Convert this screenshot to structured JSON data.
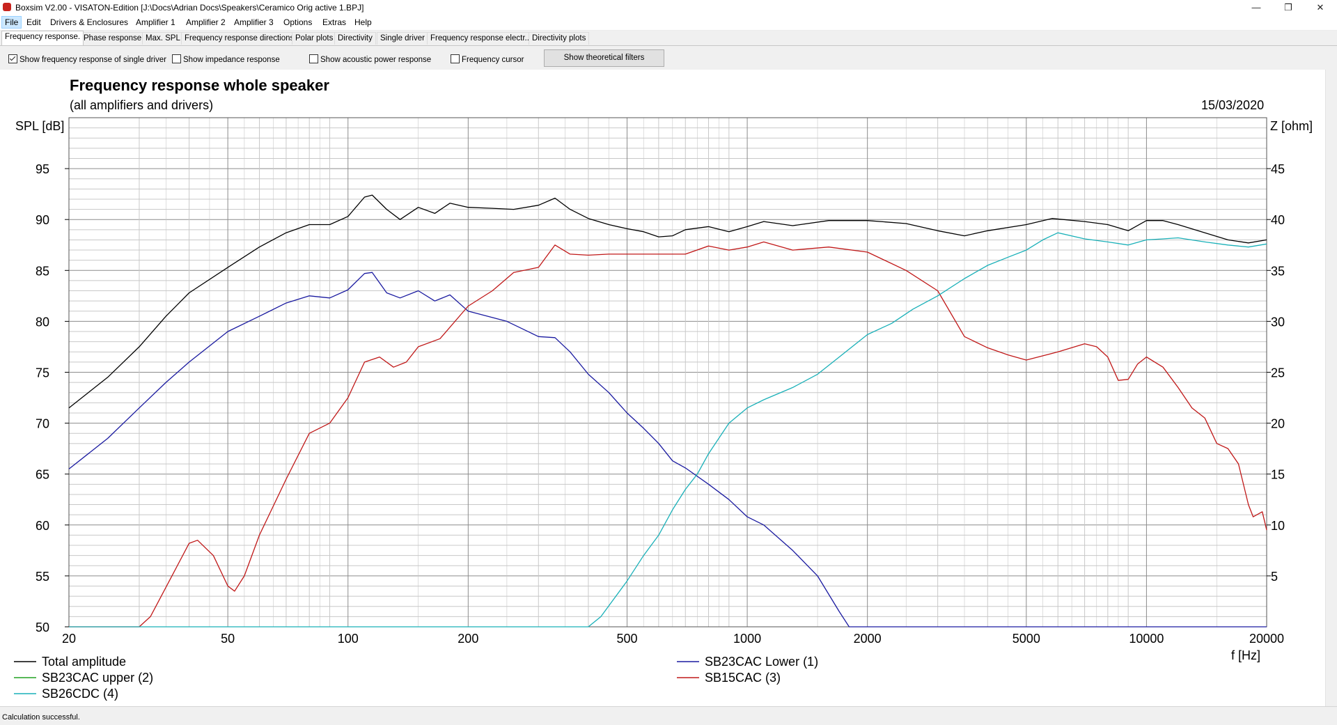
{
  "window": {
    "title": "Boxsim V2.00 - VISATON-Edition [J:\\Docs\\Adrian Docs\\Speakers\\Ceramico Orig active 1.BPJ]",
    "minimize_glyph": "—",
    "restore_glyph": "❐",
    "close_glyph": "✕"
  },
  "menu": [
    "File",
    "Edit",
    "Drivers & Enclosures",
    "Amplifier 1",
    "Amplifier 2",
    "Amplifier 3",
    "Options",
    "Extras",
    "Help"
  ],
  "tabs": [
    "Frequency response.",
    "Phase response",
    "Max. SPL",
    "Frequency response directions",
    "Polar plots",
    "Directivity",
    "Single driver",
    "Frequency response electr..",
    "Directivity plots"
  ],
  "active_tab": 0,
  "toolbar": {
    "checkboxes": [
      {
        "label": "Show frequency response of single driver",
        "checked": true
      },
      {
        "label": "Show impedance response",
        "checked": false
      },
      {
        "label": "Show acoustic power response",
        "checked": false
      },
      {
        "label": "Frequency cursor",
        "checked": false
      }
    ],
    "filter_button": "Show theoretical filters"
  },
  "status": "Calculation successful.",
  "colors": {
    "total": "#000000",
    "lower": "#1a1aa0",
    "upper": "#20a020",
    "sb15": "#c01818",
    "sb26": "#19b0b8",
    "grid_major": "#8c8c8c",
    "grid_minor": "#c8c8c8"
  },
  "chart_data": {
    "type": "line",
    "title": "Frequency response whole speaker",
    "subtitle": "(all amplifiers and drivers)",
    "date": "15/03/2020",
    "ylabel": "SPL [dB]",
    "y2label": "Z [ohm]",
    "xlabel": "f [Hz]",
    "x_scale": "log",
    "xlim": [
      20,
      20000
    ],
    "ylim": [
      50,
      100
    ],
    "y2lim": [
      0,
      50
    ],
    "x_ticks": [
      20,
      50,
      100,
      200,
      500,
      1000,
      2000,
      5000,
      10000,
      20000
    ],
    "y_ticks": [
      50,
      55,
      60,
      65,
      70,
      75,
      80,
      85,
      90,
      95
    ],
    "y2_ticks": [
      5,
      10,
      15,
      20,
      25,
      30,
      35,
      40,
      45
    ],
    "grid": true,
    "legend": [
      {
        "label": "Total amplitude",
        "key": "total"
      },
      {
        "label": "SB23CAC Lower (1)",
        "key": "lower"
      },
      {
        "label": "SB23CAC upper (2)",
        "key": "upper"
      },
      {
        "label": "SB15CAC (3)",
        "key": "sb15"
      },
      {
        "label": "SB26CDC (4)",
        "key": "sb26"
      }
    ],
    "series": [
      {
        "name": "Total amplitude",
        "key": "total",
        "points": [
          [
            20,
            71.5
          ],
          [
            25,
            74.5
          ],
          [
            30,
            77.5
          ],
          [
            35,
            80.5
          ],
          [
            40,
            82.8
          ],
          [
            50,
            85.3
          ],
          [
            60,
            87.3
          ],
          [
            70,
            88.7
          ],
          [
            80,
            89.5
          ],
          [
            90,
            89.5
          ],
          [
            100,
            90.3
          ],
          [
            110,
            92.2
          ],
          [
            115,
            92.4
          ],
          [
            125,
            91
          ],
          [
            135,
            90
          ],
          [
            150,
            91.2
          ],
          [
            165,
            90.6
          ],
          [
            180,
            91.6
          ],
          [
            200,
            91.2
          ],
          [
            230,
            91.1
          ],
          [
            260,
            91.0
          ],
          [
            300,
            91.4
          ],
          [
            330,
            92.1
          ],
          [
            360,
            91
          ],
          [
            400,
            90.1
          ],
          [
            450,
            89.5
          ],
          [
            500,
            89.1
          ],
          [
            550,
            88.8
          ],
          [
            600,
            88.3
          ],
          [
            650,
            88.4
          ],
          [
            700,
            89.0
          ],
          [
            800,
            89.3
          ],
          [
            900,
            88.8
          ],
          [
            1000,
            89.3
          ],
          [
            1100,
            89.8
          ],
          [
            1300,
            89.4
          ],
          [
            1600,
            89.9
          ],
          [
            2000,
            89.9
          ],
          [
            2500,
            89.6
          ],
          [
            3000,
            88.9
          ],
          [
            3500,
            88.4
          ],
          [
            4000,
            88.9
          ],
          [
            5000,
            89.5
          ],
          [
            5800,
            90.1
          ],
          [
            7000,
            89.8
          ],
          [
            8000,
            89.5
          ],
          [
            9000,
            88.9
          ],
          [
            10000,
            89.9
          ],
          [
            11000,
            89.9
          ],
          [
            12000,
            89.5
          ],
          [
            14000,
            88.7
          ],
          [
            16000,
            88.0
          ],
          [
            18000,
            87.7
          ],
          [
            20000,
            88.0
          ]
        ]
      },
      {
        "name": "SB23CAC Lower (1)",
        "key": "lower",
        "points": [
          [
            20,
            65.5
          ],
          [
            25,
            68.5
          ],
          [
            30,
            71.5
          ],
          [
            35,
            74
          ],
          [
            40,
            76
          ],
          [
            50,
            79
          ],
          [
            60,
            80.5
          ],
          [
            70,
            81.8
          ],
          [
            80,
            82.5
          ],
          [
            90,
            82.3
          ],
          [
            100,
            83.1
          ],
          [
            110,
            84.7
          ],
          [
            115,
            84.8
          ],
          [
            125,
            82.8
          ],
          [
            135,
            82.3
          ],
          [
            150,
            83.0
          ],
          [
            165,
            82.0
          ],
          [
            180,
            82.6
          ],
          [
            200,
            81
          ],
          [
            250,
            80
          ],
          [
            300,
            78.5
          ],
          [
            330,
            78.4
          ],
          [
            360,
            77
          ],
          [
            400,
            74.8
          ],
          [
            450,
            73
          ],
          [
            500,
            71
          ],
          [
            550,
            69.5
          ],
          [
            600,
            68
          ],
          [
            650,
            66.3
          ],
          [
            700,
            65.6
          ],
          [
            800,
            64
          ],
          [
            900,
            62.5
          ],
          [
            1000,
            60.8
          ],
          [
            1100,
            60
          ],
          [
            1300,
            57.5
          ],
          [
            1500,
            55
          ],
          [
            1700,
            51.5
          ],
          [
            1800,
            50
          ],
          [
            20000,
            50
          ]
        ]
      },
      {
        "name": "SB23CAC upper (2)",
        "key": "upper",
        "points": []
      },
      {
        "name": "SB15CAC (3)",
        "key": "sb15",
        "points": [
          [
            20,
            50
          ],
          [
            30,
            50
          ],
          [
            32,
            51
          ],
          [
            36,
            54.8
          ],
          [
            40,
            58.2
          ],
          [
            42,
            58.5
          ],
          [
            46,
            57
          ],
          [
            50,
            54
          ],
          [
            52,
            53.5
          ],
          [
            55,
            55
          ],
          [
            60,
            59
          ],
          [
            70,
            64.5
          ],
          [
            80,
            69
          ],
          [
            90,
            70
          ],
          [
            100,
            72.5
          ],
          [
            110,
            76
          ],
          [
            120,
            76.5
          ],
          [
            130,
            75.5
          ],
          [
            140,
            76
          ],
          [
            150,
            77.5
          ],
          [
            170,
            78.3
          ],
          [
            200,
            81.5
          ],
          [
            230,
            83
          ],
          [
            260,
            84.8
          ],
          [
            300,
            85.3
          ],
          [
            330,
            87.5
          ],
          [
            360,
            86.6
          ],
          [
            400,
            86.5
          ],
          [
            450,
            86.6
          ],
          [
            500,
            86.6
          ],
          [
            600,
            86.6
          ],
          [
            700,
            86.6
          ],
          [
            800,
            87.4
          ],
          [
            900,
            87
          ],
          [
            1000,
            87.3
          ],
          [
            1100,
            87.8
          ],
          [
            1300,
            87
          ],
          [
            1600,
            87.3
          ],
          [
            2000,
            86.8
          ],
          [
            2500,
            85
          ],
          [
            3000,
            83
          ],
          [
            3500,
            78.5
          ],
          [
            4000,
            77.4
          ],
          [
            4500,
            76.7
          ],
          [
            5000,
            76.2
          ],
          [
            6000,
            77
          ],
          [
            7000,
            77.8
          ],
          [
            7500,
            77.5
          ],
          [
            8000,
            76.5
          ],
          [
            8500,
            74.2
          ],
          [
            9000,
            74.3
          ],
          [
            9500,
            75.8
          ],
          [
            10000,
            76.5
          ],
          [
            11000,
            75.5
          ],
          [
            12000,
            73.5
          ],
          [
            13000,
            71.5
          ],
          [
            14000,
            70.5
          ],
          [
            15000,
            68
          ],
          [
            16000,
            67.5
          ],
          [
            17000,
            66
          ],
          [
            18000,
            62
          ],
          [
            18500,
            60.8
          ],
          [
            19500,
            61.3
          ],
          [
            20000,
            59.5
          ]
        ]
      },
      {
        "name": "SB26CDC (4)",
        "key": "sb26",
        "points": [
          [
            20,
            50
          ],
          [
            400,
            50
          ],
          [
            430,
            51
          ],
          [
            500,
            54.5
          ],
          [
            550,
            57
          ],
          [
            600,
            59
          ],
          [
            650,
            61.5
          ],
          [
            700,
            63.5
          ],
          [
            750,
            65
          ],
          [
            800,
            67
          ],
          [
            900,
            70
          ],
          [
            1000,
            71.5
          ],
          [
            1100,
            72.3
          ],
          [
            1300,
            73.5
          ],
          [
            1500,
            74.8
          ],
          [
            1700,
            76.5
          ],
          [
            2000,
            78.7
          ],
          [
            2300,
            79.8
          ],
          [
            2600,
            81.2
          ],
          [
            3000,
            82.5
          ],
          [
            3500,
            84.2
          ],
          [
            4000,
            85.5
          ],
          [
            4500,
            86.3
          ],
          [
            5000,
            87
          ],
          [
            5500,
            88
          ],
          [
            6000,
            88.7
          ],
          [
            7000,
            88.1
          ],
          [
            8000,
            87.8
          ],
          [
            9000,
            87.5
          ],
          [
            10000,
            88
          ],
          [
            11000,
            88.1
          ],
          [
            12000,
            88.2
          ],
          [
            14000,
            87.8
          ],
          [
            16000,
            87.5
          ],
          [
            18000,
            87.3
          ],
          [
            20000,
            87.6
          ]
        ]
      }
    ]
  }
}
